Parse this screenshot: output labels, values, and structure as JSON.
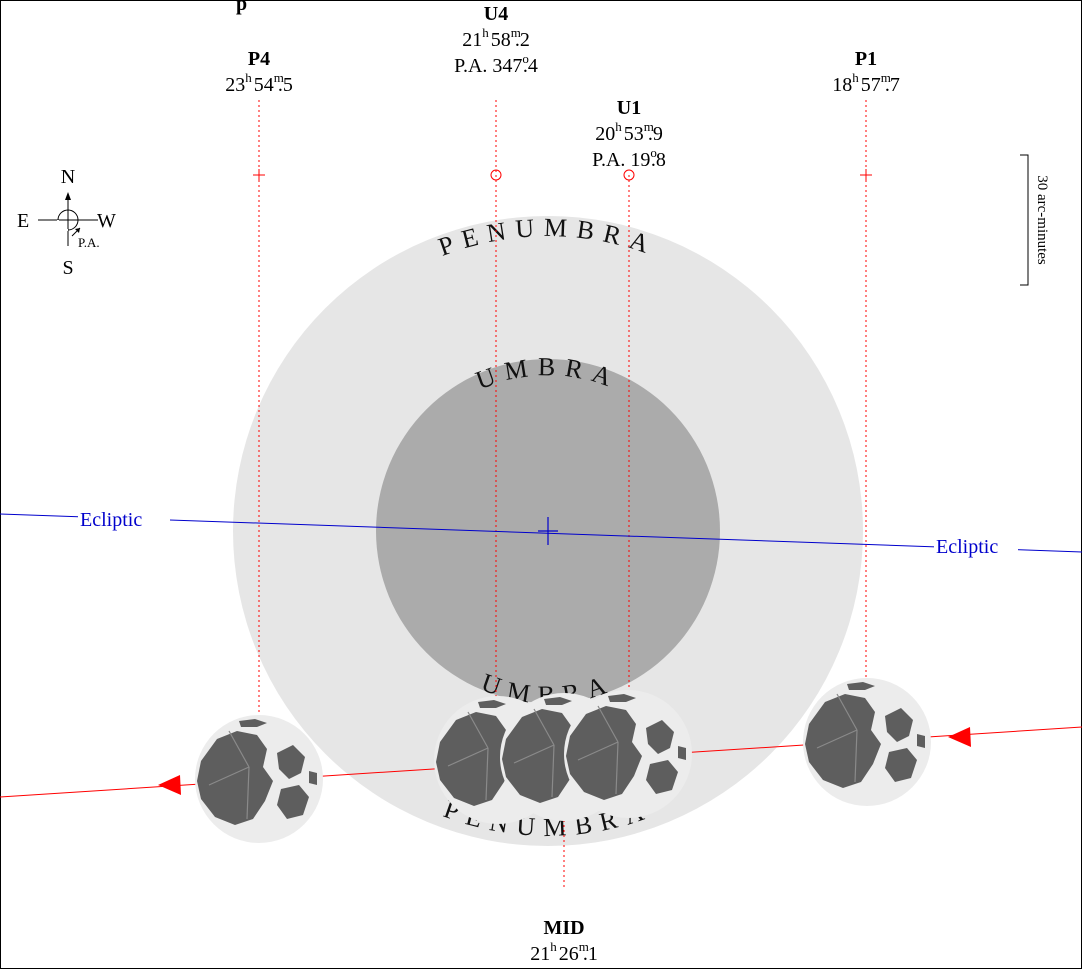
{
  "title": {
    "visible_fragment": "p"
  },
  "compass": {
    "north": "N",
    "south": "S",
    "east": "E",
    "west": "W",
    "pa": "P.A."
  },
  "scale_bar": {
    "label": "30 arc-minutes"
  },
  "shadow": {
    "penumbra": "PENUMBRA",
    "umbra": "UMBRA"
  },
  "ecliptic": {
    "label": "Ecliptic"
  },
  "contacts": {
    "p4": {
      "name": "P4",
      "h": "23",
      "hs": "h",
      "m": "54",
      "ms": "m",
      "mf": ".5"
    },
    "u4": {
      "name": "U4",
      "h": "21",
      "hs": "h",
      "m": "58",
      "ms": "m",
      "mf": ".2",
      "pa_pre": "P.A. 347",
      "pa_deg": "o",
      "pa_frac": ".4"
    },
    "u1": {
      "name": "U1",
      "h": "20",
      "hs": "h",
      "m": "53",
      "ms": "m",
      "mf": ".9",
      "pa_pre": "P.A. 19",
      "pa_deg": "o",
      "pa_frac": ".8"
    },
    "p1": {
      "name": "P1",
      "h": "18",
      "hs": "h",
      "m": "57",
      "ms": "m",
      "mf": ".7"
    },
    "mid": {
      "name": "MID",
      "h": "21",
      "hs": "h",
      "m": "26",
      "ms": "m",
      "mf": ".1"
    }
  },
  "colors": {
    "penumbra": "#e6e6e6",
    "umbra": "#ababab",
    "ecliptic": "#0000cc",
    "moon_path": "#ff0000",
    "moon_light": "#ececec",
    "moon_dark": "#5e5e5e"
  }
}
